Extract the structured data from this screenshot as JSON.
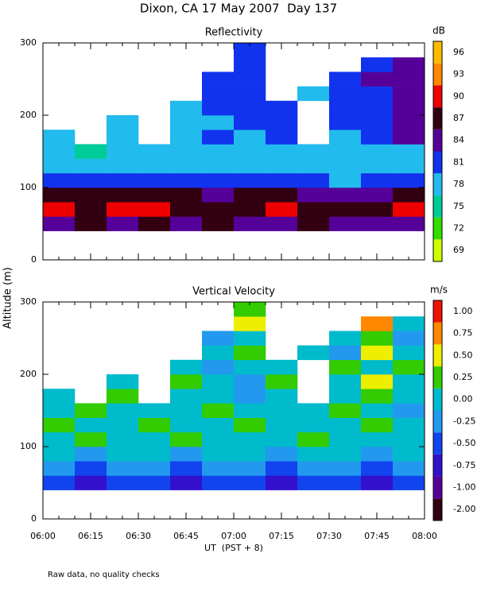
{
  "title": "Dixon, CA 17 May 2007  Day 137",
  "y_label": "Altitude (m)",
  "x_label": "UT  (PST + 8)",
  "note": "Raw data, no quality checks",
  "chart_data": [
    {
      "type": "heatmap",
      "title": "Reflectivity",
      "x_bins": [
        360,
        370,
        380,
        390,
        400,
        410,
        420,
        430,
        440,
        450,
        460,
        470,
        480
      ],
      "y_bins": [
        40,
        60,
        80,
        100,
        120,
        140,
        160,
        180,
        200,
        220,
        240,
        260,
        280,
        300
      ],
      "values": [
        [
          86,
          87,
          86,
          87,
          86,
          87,
          86,
          86,
          87,
          86,
          86,
          86
        ],
        [
          90,
          89,
          90,
          90,
          89,
          88,
          89,
          90,
          88,
          88,
          89,
          90
        ],
        [
          88,
          87,
          88,
          87,
          87,
          86,
          87,
          87,
          86,
          86,
          86,
          87
        ],
        [
          81,
          81,
          82,
          81,
          81,
          81,
          81,
          81,
          81,
          80,
          81,
          81
        ],
        [
          79,
          80,
          79,
          80,
          80,
          79,
          80,
          80,
          79,
          80,
          80,
          80
        ],
        [
          78,
          77,
          78,
          78,
          78,
          78,
          78,
          78,
          78,
          78,
          78,
          78
        ],
        [
          78,
          null,
          79,
          null,
          78,
          81,
          80,
          81,
          null,
          80,
          81,
          84
        ],
        [
          null,
          null,
          78,
          null,
          79,
          80,
          81,
          81,
          null,
          81,
          81,
          84
        ],
        [
          null,
          null,
          null,
          null,
          80,
          81,
          81,
          82,
          null,
          81,
          82,
          85
        ],
        [
          null,
          null,
          null,
          null,
          null,
          82,
          81,
          null,
          80,
          81,
          83,
          85
        ],
        [
          null,
          null,
          null,
          null,
          null,
          81,
          82,
          null,
          null,
          81,
          84,
          85
        ],
        [
          null,
          null,
          null,
          null,
          null,
          null,
          81,
          null,
          null,
          null,
          82,
          85
        ],
        [
          null,
          null,
          null,
          null,
          null,
          null,
          82,
          null,
          null,
          null,
          null,
          null
        ]
      ],
      "xlim": [
        360,
        480
      ],
      "xticks": [
        {
          "value": 360,
          "label": "06:00"
        },
        {
          "value": 375,
          "label": "06:15"
        },
        {
          "value": 390,
          "label": "06:30"
        },
        {
          "value": 405,
          "label": "06:45"
        },
        {
          "value": 420,
          "label": "07:00"
        },
        {
          "value": 435,
          "label": "07:15"
        },
        {
          "value": 450,
          "label": "07:30"
        },
        {
          "value": 465,
          "label": "07:45"
        },
        {
          "value": 480,
          "label": "08:00"
        }
      ],
      "xminorticks": [
        365,
        370,
        380,
        385,
        395,
        400,
        410,
        415,
        425,
        430,
        440,
        445,
        455,
        460,
        470,
        475
      ],
      "xtick_labels": false,
      "ylim": [
        0,
        300
      ],
      "yticks": [
        0,
        100,
        200,
        300
      ],
      "colorbar": {
        "label": "dB",
        "levels": [
          69,
          72,
          75,
          78,
          81,
          84,
          87,
          90,
          93,
          96
        ],
        "colors": [
          "#ccff00",
          "#33dd00",
          "#00cc99",
          "#22bbee",
          "#1133ee",
          "#550099",
          "#330011",
          "#ee0000",
          "#ff8800",
          "#ffbb00"
        ]
      }
    },
    {
      "type": "heatmap",
      "title": "Vertical Velocity",
      "x_bins": [
        360,
        370,
        380,
        390,
        400,
        410,
        420,
        430,
        440,
        450,
        460,
        470,
        480
      ],
      "y_bins": [
        40,
        60,
        80,
        100,
        120,
        140,
        160,
        180,
        200,
        220,
        240,
        260,
        280,
        300
      ],
      "values": [
        [
          -0.5,
          -0.75,
          -0.5,
          -0.5,
          -0.75,
          -0.5,
          -0.5,
          -0.75,
          -0.5,
          -0.5,
          -0.75,
          -0.5
        ],
        [
          -0.25,
          -0.5,
          -0.25,
          -0.25,
          -0.5,
          -0.25,
          -0.25,
          -0.5,
          -0.25,
          -0.25,
          -0.5,
          -0.25
        ],
        [
          0,
          -0.25,
          0,
          0,
          -0.25,
          0,
          0,
          -0.25,
          0,
          0,
          -0.25,
          0
        ],
        [
          0,
          0.25,
          0,
          0,
          0.25,
          0,
          0,
          0,
          0.25,
          0,
          0,
          0
        ],
        [
          0.25,
          0,
          0,
          0.25,
          0,
          0,
          0.25,
          0,
          0,
          0,
          0.25,
          0
        ],
        [
          0,
          0.25,
          0,
          0,
          0,
          0.25,
          0,
          0,
          0,
          0.25,
          0,
          -0.25
        ],
        [
          0,
          null,
          0.25,
          null,
          0,
          0,
          -0.25,
          0,
          null,
          0,
          0.25,
          0
        ],
        [
          null,
          null,
          0,
          null,
          0.25,
          0,
          -0.25,
          0.25,
          null,
          0,
          0.5,
          0
        ],
        [
          null,
          null,
          null,
          null,
          0,
          -0.25,
          0,
          0,
          null,
          0.25,
          0,
          0.25
        ],
        [
          null,
          null,
          null,
          null,
          null,
          0,
          0.25,
          null,
          0,
          -0.25,
          0.5,
          0
        ],
        [
          null,
          null,
          null,
          null,
          null,
          -0.25,
          0,
          null,
          null,
          0,
          0.25,
          -0.25
        ],
        [
          null,
          null,
          null,
          null,
          null,
          null,
          0.5,
          null,
          null,
          null,
          0.75,
          0
        ],
        [
          null,
          null,
          null,
          null,
          null,
          null,
          0.25,
          null,
          null,
          null,
          null,
          null
        ]
      ],
      "xlim": [
        360,
        480
      ],
      "xticks": [
        {
          "value": 360,
          "label": "06:00"
        },
        {
          "value": 375,
          "label": "06:15"
        },
        {
          "value": 390,
          "label": "06:30"
        },
        {
          "value": 405,
          "label": "06:45"
        },
        {
          "value": 420,
          "label": "07:00"
        },
        {
          "value": 435,
          "label": "07:15"
        },
        {
          "value": 450,
          "label": "07:30"
        },
        {
          "value": 465,
          "label": "07:45"
        },
        {
          "value": 480,
          "label": "08:00"
        }
      ],
      "xminorticks": [
        365,
        370,
        380,
        385,
        395,
        400,
        410,
        415,
        425,
        430,
        440,
        445,
        455,
        460,
        470,
        475
      ],
      "xtick_labels": true,
      "ylim": [
        0,
        300
      ],
      "yticks": [
        0,
        100,
        200,
        300
      ],
      "colorbar": {
        "label": "m/s",
        "levels": [
          {
            "value": -2,
            "label": "-2.00"
          },
          {
            "value": -1,
            "label": "-1.00"
          },
          {
            "value": -0.75,
            "label": "-0.75"
          },
          {
            "value": -0.5,
            "label": "-0.50"
          },
          {
            "value": -0.25,
            "label": "-0.25"
          },
          {
            "value": 0,
            "label": "0.00"
          },
          {
            "value": 0.25,
            "label": "0.25"
          },
          {
            "value": 0.5,
            "label": "0.50"
          },
          {
            "value": 0.75,
            "label": "0.75"
          },
          {
            "value": 1,
            "label": "1.00"
          }
        ],
        "colors": [
          "#330011",
          "#550099",
          "#3311cc",
          "#1144ee",
          "#2299ee",
          "#00bbcc",
          "#33cc00",
          "#eeee00",
          "#ff8800",
          "#ee1100"
        ]
      }
    }
  ]
}
